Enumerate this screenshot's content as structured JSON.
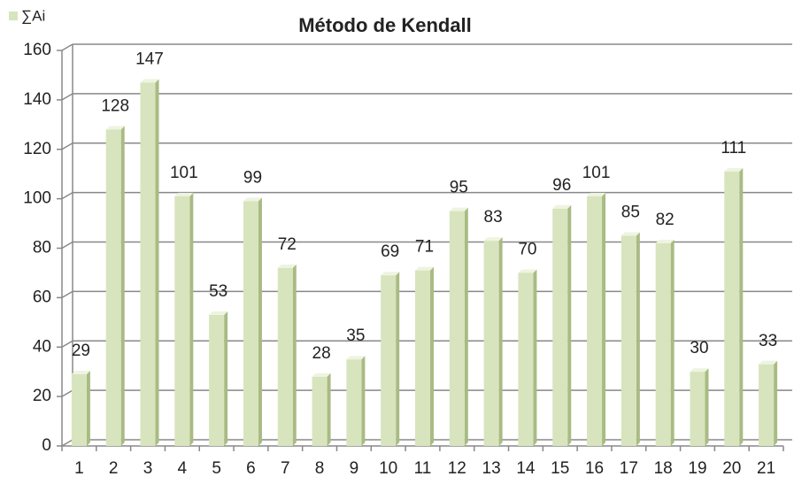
{
  "chart_data": {
    "type": "bar",
    "title": "Método de Kendall",
    "series": [
      {
        "name": "∑Ai",
        "color": "#d7e4bd",
        "values": [
          29,
          128,
          147,
          101,
          53,
          99,
          72,
          28,
          35,
          69,
          71,
          95,
          83,
          70,
          96,
          101,
          85,
          82,
          30,
          111,
          33
        ]
      }
    ],
    "categories": [
      "1",
      "2",
      "3",
      "4",
      "5",
      "6",
      "7",
      "8",
      "9",
      "10",
      "11",
      "12",
      "13",
      "14",
      "15",
      "16",
      "17",
      "18",
      "19",
      "20",
      "21"
    ],
    "ylim": [
      0,
      160
    ],
    "yticks": [
      0,
      20,
      40,
      60,
      80,
      100,
      120,
      140,
      160
    ],
    "grid": true,
    "legend": "top-left"
  }
}
